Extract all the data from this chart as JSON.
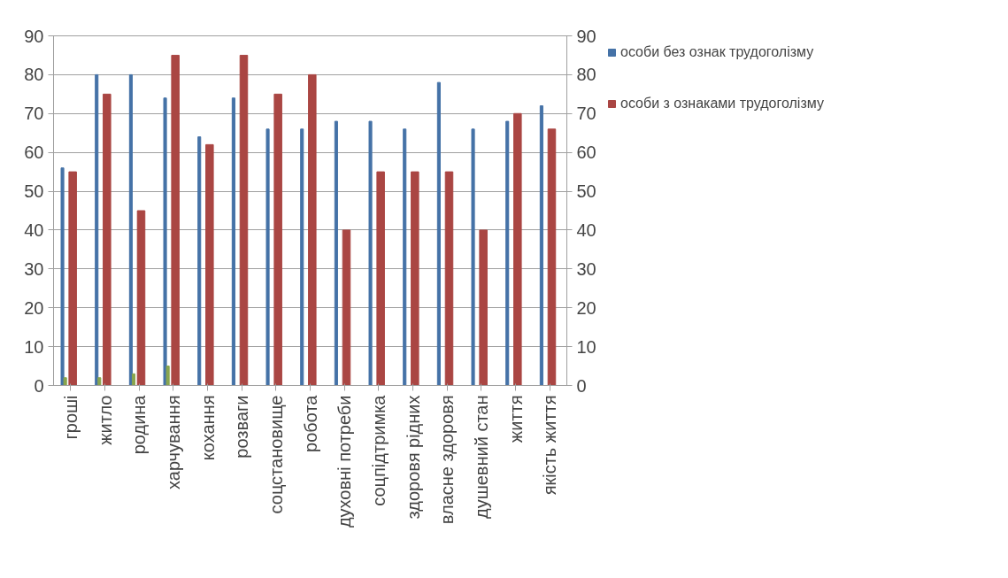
{
  "chart_data": {
    "type": "bar",
    "categories": [
      "гроші",
      "житло",
      "родина",
      "харчування",
      "кохання",
      "розваги",
      "соцстановище",
      "робота",
      "духовні потреби",
      "соцпідтримка",
      "здоровя рідних",
      "власне здоровя",
      "душевний стан",
      "життя",
      "якість життя"
    ],
    "series": [
      {
        "name": "особи без ознак трудоголізму",
        "color": "#4572a7",
        "values": [
          56,
          80,
          80,
          74,
          64,
          74,
          66,
          66,
          68,
          68,
          66,
          78,
          66,
          68,
          72
        ]
      },
      {
        "color": "#89a54e",
        "values": [
          2,
          2,
          3,
          5,
          null,
          null,
          null,
          null,
          null,
          null,
          null,
          null,
          null,
          null,
          null
        ]
      },
      {
        "name": "особи з ознаками трудоголізму",
        "color": "#aa4643",
        "values": [
          55,
          75,
          45,
          85,
          62,
          85,
          75,
          80,
          40,
          55,
          55,
          55,
          40,
          70,
          66
        ]
      }
    ],
    "ylim": [
      0,
      90
    ],
    "yticks": [
      0,
      10,
      20,
      30,
      40,
      50,
      60,
      70,
      80,
      90
    ],
    "y2lim": [
      0,
      90
    ],
    "y2ticks": [
      0,
      10,
      20,
      30,
      40,
      50,
      60,
      70,
      80,
      90
    ],
    "grid": "y",
    "legend": "right"
  }
}
